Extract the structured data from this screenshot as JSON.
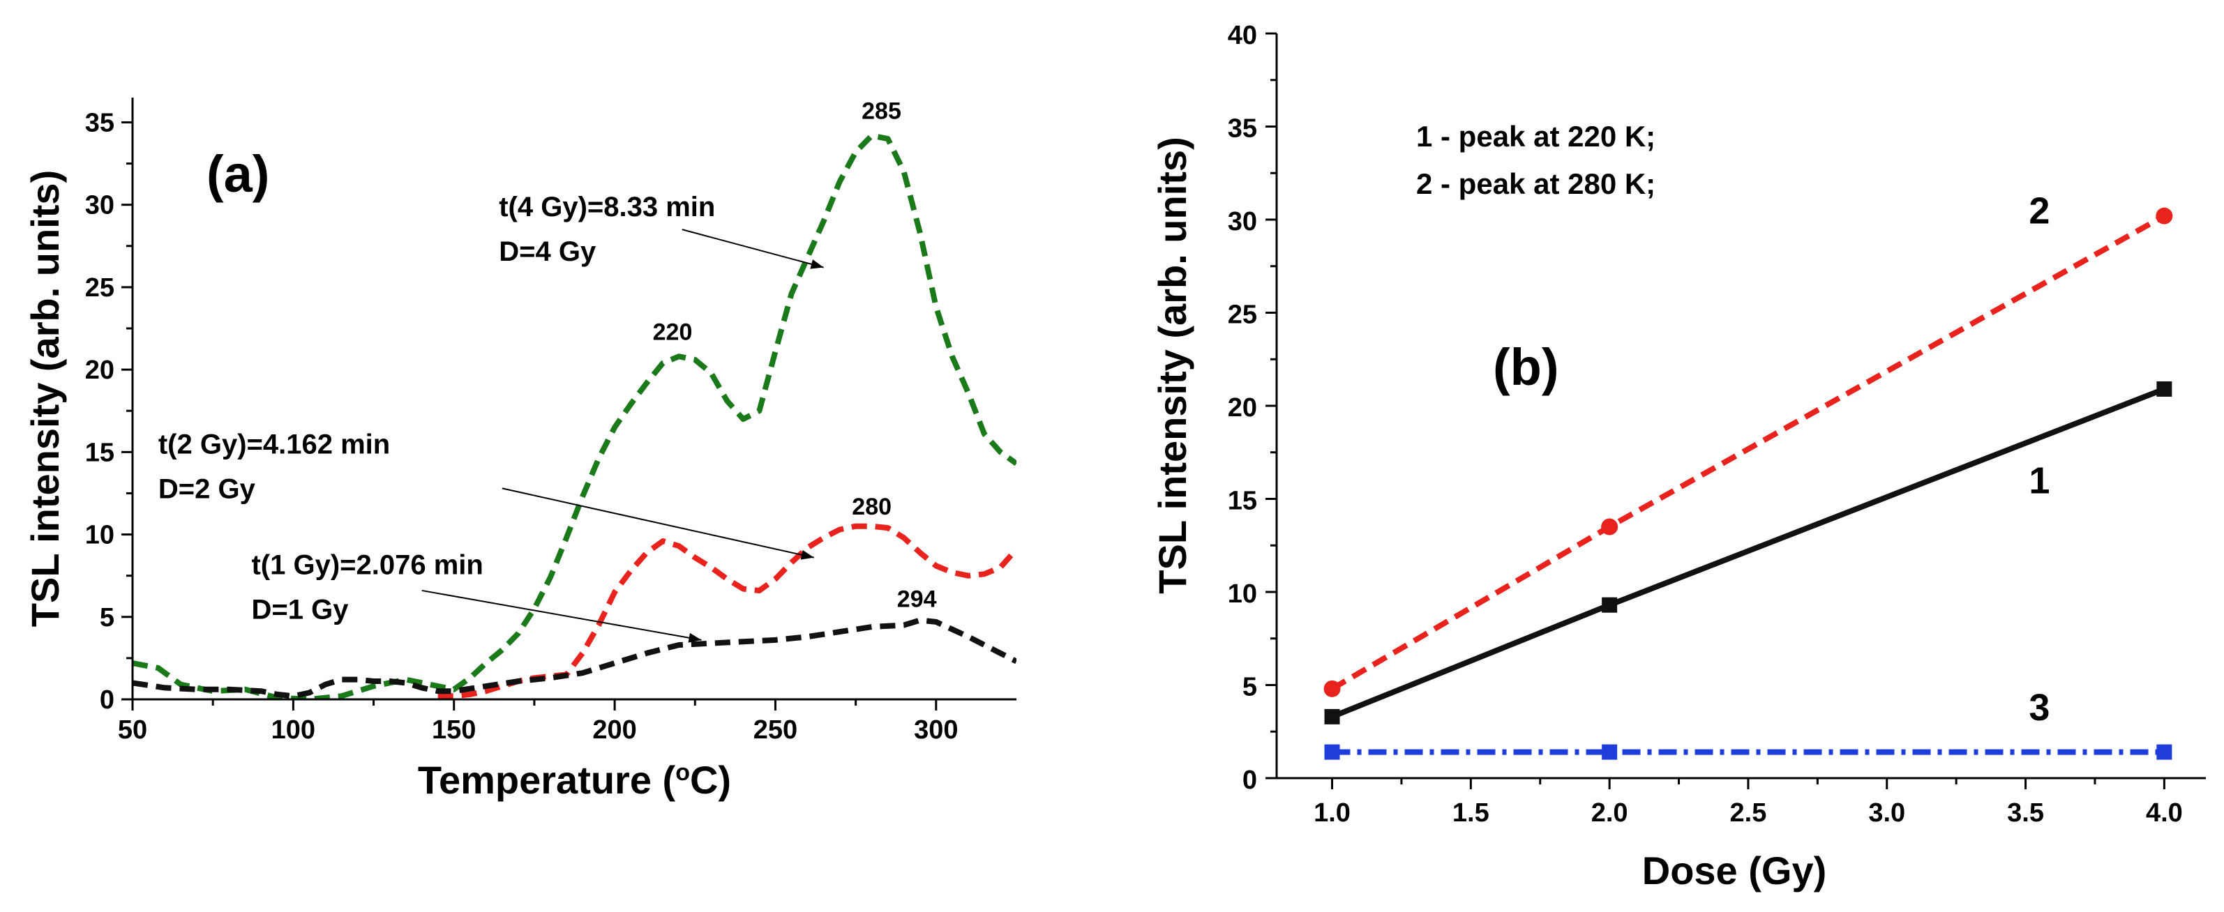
{
  "chart_data": [
    {
      "type": "line",
      "panel_label": "(a)",
      "xlabel": "Temperature (°C)",
      "xlabel_parts": {
        "before": "Temperature (",
        "sup": "o",
        "after": "C)"
      },
      "ylabel": "TSL intensity (arb. units)",
      "xlim": [
        50,
        325
      ],
      "ylim": [
        0,
        36.5
      ],
      "xticks": [
        50,
        100,
        150,
        200,
        250,
        300
      ],
      "yticks": [
        0,
        5,
        10,
        15,
        20,
        25,
        30,
        35
      ],
      "series": [
        {
          "name": "D=4 Gy",
          "color": "#1a7a1a",
          "dash": "dash",
          "x": [
            50,
            58,
            65,
            75,
            85,
            95,
            105,
            115,
            125,
            135,
            145,
            150,
            155,
            160,
            165,
            170,
            175,
            180,
            185,
            190,
            195,
            200,
            205,
            210,
            215,
            220,
            225,
            230,
            235,
            240,
            245,
            250,
            255,
            260,
            265,
            270,
            275,
            280,
            285,
            290,
            295,
            300,
            305,
            310,
            315,
            320,
            325
          ],
          "y": [
            2.2,
            1.9,
            0.9,
            0.5,
            0.6,
            0.1,
            0.0,
            0.2,
            0.8,
            1.2,
            0.8,
            0.6,
            1.3,
            2.2,
            3.0,
            4.0,
            5.5,
            7.4,
            9.8,
            12.3,
            14.6,
            16.5,
            17.9,
            19.2,
            20.4,
            20.8,
            20.6,
            19.8,
            18.1,
            17.0,
            17.5,
            21.1,
            24.6,
            26.8,
            29.0,
            31.4,
            33.2,
            34.2,
            34.0,
            32.0,
            28.3,
            23.8,
            20.8,
            18.6,
            16.1,
            15.0,
            14.3
          ]
        },
        {
          "name": "D=2 Gy",
          "color": "#e8231e",
          "dash": "dash",
          "x": [
            145,
            150,
            155,
            160,
            165,
            170,
            175,
            180,
            185,
            190,
            195,
            200,
            205,
            210,
            215,
            220,
            225,
            230,
            235,
            240,
            245,
            250,
            255,
            260,
            265,
            270,
            275,
            280,
            285,
            290,
            295,
            300,
            305,
            310,
            315,
            320,
            325
          ],
          "y": [
            0.2,
            0.2,
            0.3,
            0.5,
            0.8,
            1.1,
            1.3,
            1.4,
            1.5,
            2.8,
            4.5,
            6.5,
            7.8,
            8.9,
            9.6,
            9.3,
            8.6,
            8.0,
            7.3,
            6.7,
            6.6,
            7.3,
            8.3,
            9.2,
            9.8,
            10.3,
            10.5,
            10.5,
            10.4,
            9.8,
            8.9,
            8.1,
            7.7,
            7.5,
            7.6,
            8.0,
            9.1
          ]
        },
        {
          "name": "D=1 Gy",
          "color": "#111111",
          "dash": "dash",
          "x": [
            50,
            60,
            70,
            80,
            90,
            95,
            100,
            105,
            110,
            115,
            120,
            125,
            130,
            135,
            140,
            145,
            150,
            160,
            170,
            180,
            190,
            200,
            210,
            220,
            230,
            240,
            250,
            260,
            270,
            280,
            290,
            295,
            300,
            310,
            320,
            325
          ],
          "y": [
            1.0,
            0.7,
            0.6,
            0.6,
            0.5,
            0.3,
            0.2,
            0.4,
            0.9,
            1.2,
            1.2,
            1.1,
            1.1,
            1.0,
            0.7,
            0.5,
            0.5,
            0.8,
            1.1,
            1.3,
            1.6,
            2.2,
            2.8,
            3.3,
            3.4,
            3.5,
            3.6,
            3.8,
            4.1,
            4.4,
            4.5,
            4.8,
            4.7,
            3.8,
            2.8,
            2.3
          ]
        }
      ],
      "peak_labels": [
        {
          "text": "285",
          "x": 283,
          "y": 35.2
        },
        {
          "text": "220",
          "x": 218,
          "y": 21.8
        },
        {
          "text": "280",
          "x": 280,
          "y": 11.2
        },
        {
          "text": "294",
          "x": 294,
          "y": 5.6
        }
      ],
      "annotations": [
        {
          "line1": "t(4 Gy)=8.33 min",
          "line2": "D=4 Gy",
          "tx": 164,
          "ty": 29.3,
          "ax": 221,
          "ay": 28.5,
          "bx": 265,
          "by": 26.2
        },
        {
          "line1": "t(2 Gy)=4.162 min",
          "line2": "D=2 Gy",
          "tx": 58,
          "ty": 14.9,
          "ax": 165,
          "ay": 12.8,
          "bx": 262,
          "by": 8.6
        },
        {
          "line1": "t(1 Gy)=2.076 min",
          "line2": "D=1 Gy",
          "tx": 87,
          "ty": 7.6,
          "ax": 140,
          "ay": 6.6,
          "bx": 227,
          "by": 3.6
        }
      ]
    },
    {
      "type": "line",
      "panel_label": "(b)",
      "xlabel": "Dose (Gy)",
      "ylabel": "TSL intensity (arb. units)",
      "xlim": [
        0.8,
        4.15
      ],
      "ylim": [
        0,
        40
      ],
      "xticks": [
        "1.0",
        "1.5",
        "2.0",
        "2.5",
        "3.0",
        "3.5",
        "4.0"
      ],
      "yticks": [
        0,
        5,
        10,
        15,
        20,
        25,
        30,
        35,
        40
      ],
      "legend": [
        "1 - peak at 220 K;",
        "2 - peak at 280 K;"
      ],
      "series": [
        {
          "name": "1",
          "color": "#111111",
          "dash": "solid",
          "marker": "square",
          "x": [
            1.0,
            2.0,
            4.0
          ],
          "y": [
            3.3,
            9.3,
            20.9
          ]
        },
        {
          "name": "2",
          "color": "#e8231e",
          "dash": "dash",
          "marker": "circle",
          "x": [
            1.0,
            2.0,
            4.0
          ],
          "y": [
            4.8,
            13.5,
            30.2
          ]
        },
        {
          "name": "3",
          "color": "#1f3ddb",
          "dash": "dashdot",
          "marker": "square",
          "x": [
            1.0,
            2.0,
            4.0
          ],
          "y": [
            1.4,
            1.4,
            1.4
          ]
        }
      ],
      "curve_labels": [
        {
          "text": "2",
          "x": 3.55,
          "y": 29.8
        },
        {
          "text": "1",
          "x": 3.55,
          "y": 15.3
        },
        {
          "text": "3",
          "x": 3.55,
          "y": 3.1
        }
      ]
    }
  ]
}
